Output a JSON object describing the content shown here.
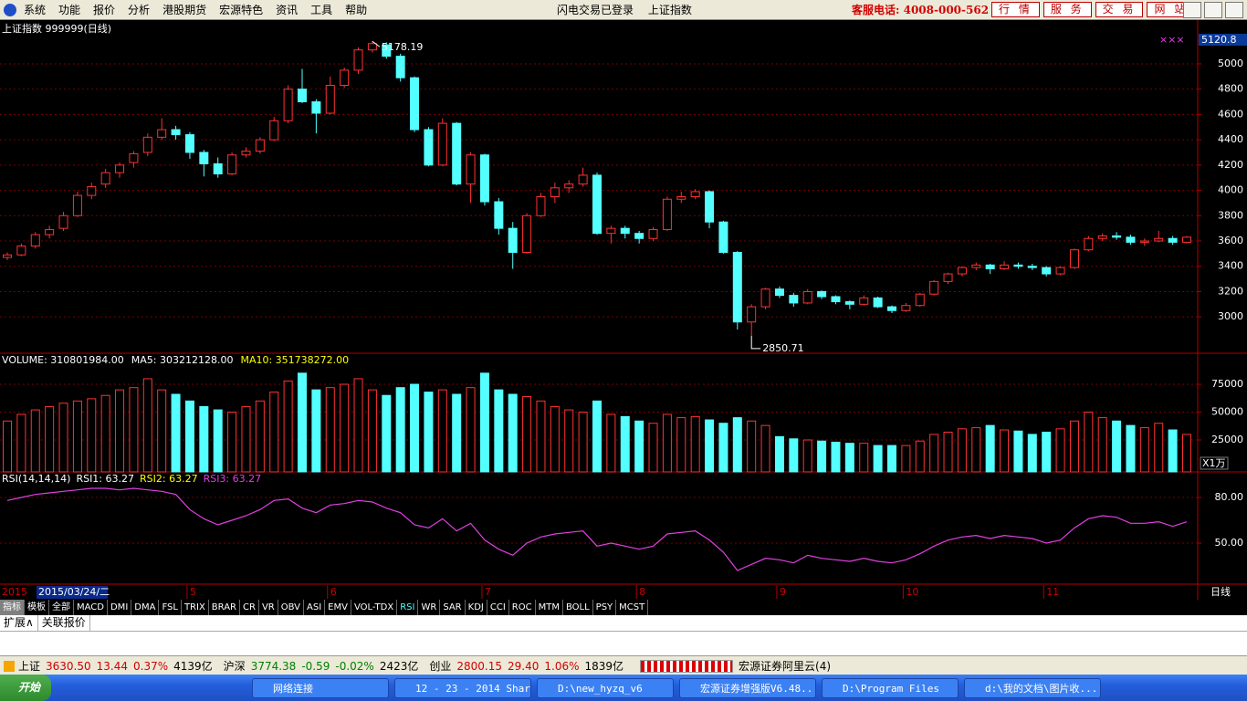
{
  "menu": [
    "系统",
    "功能",
    "报价",
    "分析",
    "港股期货",
    "宏源特色",
    "资讯",
    "工具",
    "帮助"
  ],
  "login_status": "闪电交易已登录",
  "instrument": "上证指数",
  "hotline": "客服电话: 4008-000-562",
  "top_buttons": [
    "行 情",
    "服 务",
    "交 易",
    "网 站"
  ],
  "chart_data": [
    {
      "type": "candlestick",
      "title": "上证指数 999999(日线)",
      "categories": [
        "2015",
        null,
        null,
        null,
        null,
        null,
        null,
        null,
        null,
        null,
        null,
        null,
        null,
        "5",
        null,
        null,
        null,
        null,
        null,
        null,
        null,
        null,
        null,
        "6",
        null,
        null,
        null,
        null,
        null,
        null,
        null,
        null,
        null,
        null,
        "7",
        null,
        null,
        null,
        null,
        null,
        null,
        null,
        null,
        null,
        null,
        "8",
        null,
        null,
        null,
        null,
        null,
        null,
        null,
        null,
        null,
        "9",
        null,
        null,
        null,
        null,
        null,
        null,
        null,
        null,
        "10",
        null,
        null,
        null,
        null,
        null,
        null,
        null,
        null,
        null,
        "11",
        null,
        null,
        null,
        null,
        null,
        null,
        null,
        null,
        null,
        null
      ],
      "cursor_date": "2015/03/24/二",
      "period": "日线",
      "cursor_value": "5120.8",
      "annotations": [
        "5178.19",
        "2850.71"
      ],
      "open": [
        3470,
        3490,
        3560,
        3650,
        3700,
        3800,
        3960,
        4050,
        4140,
        4220,
        4300,
        4420,
        4480,
        4440,
        4300,
        4210,
        4130,
        4280,
        4310,
        4400,
        4550,
        4800,
        4700,
        4610,
        4830,
        4950,
        5110,
        5150,
        5060,
        4890,
        4480,
        4200,
        4530,
        4050,
        4280,
        3910,
        3700,
        3510,
        3800,
        3950,
        4020,
        4050,
        4120,
        3660,
        3700,
        3660,
        3620,
        3690,
        3930,
        3950,
        3990,
        3750,
        3510,
        2960,
        3080,
        3220,
        3170,
        3110,
        3200,
        3160,
        3120,
        3100,
        3150,
        3080,
        3050,
        3090,
        3180,
        3280,
        3340,
        3390,
        3410,
        3380,
        3410,
        3400,
        3390,
        3340,
        3390,
        3530,
        3620,
        3640,
        3630,
        3590,
        3600,
        3620,
        3590
      ],
      "high": [
        3510,
        3580,
        3670,
        3720,
        3830,
        3990,
        4060,
        4170,
        4220,
        4310,
        4450,
        4570,
        4510,
        4460,
        4320,
        4260,
        4300,
        4340,
        4420,
        4580,
        4830,
        4960,
        4720,
        4900,
        4970,
        5130,
        5178.19,
        5170,
        5080,
        4900,
        4500,
        4570,
        4540,
        4300,
        4290,
        3940,
        3750,
        3820,
        3980,
        4060,
        4080,
        4180,
        4140,
        3720,
        3720,
        3680,
        3710,
        3950,
        3990,
        4010,
        4000,
        3760,
        3520,
        3100,
        3230,
        3240,
        3190,
        3220,
        3210,
        3170,
        3130,
        3170,
        3160,
        3090,
        3110,
        3190,
        3290,
        3350,
        3400,
        3430,
        3420,
        3440,
        3430,
        3420,
        3400,
        3400,
        3540,
        3640,
        3660,
        3670,
        3650,
        3620,
        3680,
        3640,
        3640
      ],
      "low": [
        3450,
        3480,
        3540,
        3620,
        3680,
        3790,
        3930,
        4020,
        4100,
        4180,
        4270,
        4400,
        4400,
        4250,
        4110,
        4100,
        4120,
        4260,
        4290,
        4390,
        4530,
        4690,
        4450,
        4600,
        4810,
        4920,
        5090,
        5040,
        4860,
        4460,
        4190,
        4190,
        4040,
        3900,
        3880,
        3650,
        3380,
        3500,
        3790,
        3900,
        3980,
        4030,
        3650,
        3580,
        3620,
        3580,
        3600,
        3680,
        3900,
        3930,
        3700,
        3500,
        2900,
        2850.71,
        3060,
        3150,
        3080,
        3100,
        3140,
        3100,
        3060,
        3090,
        3070,
        3030,
        3040,
        3080,
        3170,
        3260,
        3320,
        3370,
        3340,
        3370,
        3380,
        3370,
        3320,
        3330,
        3380,
        3520,
        3600,
        3610,
        3570,
        3560,
        3590,
        3570,
        3580
      ],
      "close": [
        3490,
        3560,
        3650,
        3690,
        3800,
        3960,
        4030,
        4140,
        4200,
        4290,
        4420,
        4480,
        4440,
        4300,
        4210,
        4130,
        4280,
        4310,
        4400,
        4550,
        4800,
        4700,
        4610,
        4830,
        4950,
        5110,
        5160,
        5060,
        4890,
        4480,
        4200,
        4530,
        4050,
        4280,
        3910,
        3700,
        3510,
        3800,
        3950,
        4020,
        4050,
        4120,
        3660,
        3700,
        3660,
        3620,
        3690,
        3930,
        3950,
        3990,
        3750,
        3510,
        2960,
        3080,
        3220,
        3170,
        3110,
        3200,
        3160,
        3120,
        3100,
        3150,
        3080,
        3050,
        3090,
        3180,
        3280,
        3340,
        3390,
        3410,
        3380,
        3410,
        3400,
        3390,
        3340,
        3390,
        3530,
        3620,
        3640,
        3630,
        3590,
        3600,
        3620,
        3590,
        3630
      ],
      "up_color": "#ff3232",
      "down_color": "#54ffff",
      "ylim": [
        2720,
        5216
      ],
      "yticks": [
        3000,
        3200,
        3400,
        3600,
        3800,
        4000,
        4200,
        4400,
        4600,
        4800,
        5000
      ],
      "grid": true
    },
    {
      "type": "bar",
      "header": [
        "VOLUME: 310801984.00",
        "MA5: 303212128.00",
        "MA10: 351738272.00"
      ],
      "unit": "X1万",
      "values": [
        42000,
        48000,
        52000,
        55000,
        58000,
        60000,
        62000,
        65000,
        70000,
        72000,
        80000,
        70000,
        66000,
        60000,
        55000,
        52000,
        50000,
        55000,
        60000,
        68000,
        78000,
        85000,
        70000,
        72000,
        75000,
        80000,
        70000,
        65000,
        72000,
        75000,
        68000,
        70000,
        66000,
        72000,
        85000,
        70000,
        66000,
        64000,
        60000,
        55000,
        52000,
        50000,
        60000,
        48000,
        46000,
        42000,
        40000,
        48000,
        45000,
        46000,
        43000,
        40000,
        45000,
        42000,
        38000,
        28000,
        26000,
        25000,
        24000,
        23000,
        22000,
        22000,
        20000,
        20000,
        20000,
        24000,
        30000,
        32000,
        35000,
        36000,
        38000,
        34000,
        33000,
        30000,
        32000,
        35000,
        42000,
        50000,
        45000,
        42000,
        38000,
        36000,
        40000,
        34000,
        30000
      ],
      "ylim": [
        -3700,
        94700
      ],
      "yticks": [
        25000,
        50000,
        75000
      ],
      "grid": true
    },
    {
      "type": "line",
      "header": [
        "RSI(14,14,14)",
        "RSI1: 63.27",
        "RSI2: 63.27",
        "RSI3: 63.27"
      ],
      "color": "#e040e0",
      "values": [
        78,
        80,
        82,
        83,
        84,
        85,
        86,
        86,
        85,
        86,
        85,
        84,
        82,
        72,
        66,
        62,
        65,
        68,
        72,
        78,
        79,
        73,
        70,
        75,
        76,
        78,
        77,
        73,
        70,
        62,
        60,
        66,
        58,
        63,
        52,
        46,
        42,
        50,
        54,
        56,
        57,
        58,
        48,
        50,
        48,
        46,
        48,
        56,
        57,
        58,
        52,
        44,
        32,
        36,
        40,
        39,
        37,
        42,
        40,
        39,
        38,
        40,
        38,
        37,
        39,
        43,
        48,
        52,
        54,
        55,
        53,
        55,
        54,
        53,
        50,
        52,
        60,
        66,
        68,
        67,
        63,
        63,
        64,
        61,
        64
      ],
      "ylim": [
        23,
        96.2
      ],
      "yticks": [
        {
          "value": 50,
          "label": "50.00"
        },
        {
          "value": 80,
          "label": "80.00"
        }
      ],
      "grid": true
    }
  ],
  "indicator_tabs": [
    "指标",
    "模板",
    "全部",
    "MACD",
    "DMI",
    "DMA",
    "FSL",
    "TRIX",
    "BRAR",
    "CR",
    "VR",
    "OBV",
    "ASI",
    "EMV",
    "VOL-TDX",
    "RSI",
    "WR",
    "SAR",
    "KDJ",
    "CCI",
    "ROC",
    "MTM",
    "BOLL",
    "PSY",
    "MCST"
  ],
  "extension_tabs": [
    "扩展∧",
    "关联报价"
  ],
  "status_bar": [
    {
      "text": "上证",
      "color": "#000"
    },
    {
      "text": "3630.50",
      "color": "#d00000"
    },
    {
      "text": "13.44",
      "color": "#d00000"
    },
    {
      "text": "0.37%",
      "color": "#d00000"
    },
    {
      "text": "4139亿",
      "color": "#000"
    },
    {
      "text": "沪深",
      "color": "#000"
    },
    {
      "text": "3774.38",
      "color": "#008000"
    },
    {
      "text": "-0.59",
      "color": "#008000"
    },
    {
      "text": "-0.02%",
      "color": "#008000"
    },
    {
      "text": "2423亿",
      "color": "#000"
    },
    {
      "text": "创业",
      "color": "#000"
    },
    {
      "text": "2800.15",
      "color": "#d00000"
    },
    {
      "text": "29.40",
      "color": "#d00000"
    },
    {
      "text": "1.06%",
      "color": "#d00000"
    },
    {
      "text": "1839亿",
      "color": "#000"
    }
  ],
  "connection": "宏源证券阿里云(4)",
  "taskbar": {
    "start": "开始",
    "tasks": [
      "网络连接",
      "12 - 23 - 2014 Shar...",
      "D:\\new_hyzq_v6",
      "宏源证券增强版V6.48...",
      "D:\\Program Files",
      "d:\\我的文档\\图片收..."
    ]
  }
}
